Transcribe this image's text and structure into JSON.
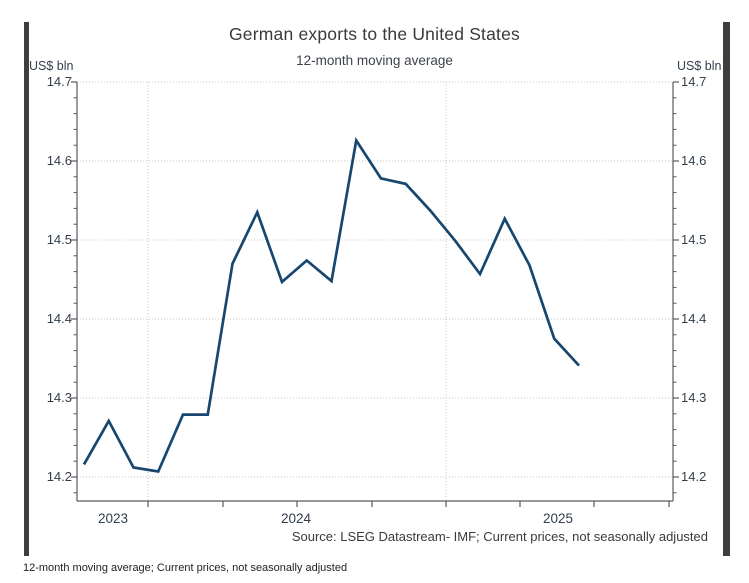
{
  "header": {
    "title": "German exports to the United States",
    "subtitle": "12-month moving average"
  },
  "axis_units": {
    "left": "US$ bln",
    "right": "US$ bln"
  },
  "y_axis": {
    "tick_labels": [
      "14.7",
      "14.6",
      "14.5",
      "14.4",
      "14.3",
      "14.2"
    ],
    "tick_values": [
      14.7,
      14.6,
      14.5,
      14.4,
      14.3,
      14.2
    ]
  },
  "x_axis": {
    "year_labels": [
      "2023",
      "2024",
      "2025"
    ]
  },
  "footer": {
    "source": "Source: LSEG Datastream- IMF; Current prices, not seasonally adjusted",
    "caption": "12-month moving average; Current prices, not seasonally adjusted"
  },
  "chart_data": {
    "type": "line",
    "title": "German exports to the United States",
    "subtitle": "12-month moving average",
    "ylabel": "US$ bln",
    "ylim": [
      14.2,
      14.7
    ],
    "y_tick_step": 0.1,
    "grid": "dotted",
    "legend": "none",
    "x": [
      "Oct 2023",
      "Nov 2023",
      "Dec 2023",
      "Jan 2024",
      "Feb 2024",
      "Mar 2024",
      "Apr 2024",
      "May 2024",
      "Jun 2024",
      "Jul 2024",
      "Aug 2024",
      "Sep 2024",
      "Oct 2024",
      "Nov 2024",
      "Dec 2024",
      "Jan 2025",
      "Feb 2025",
      "Mar 2025",
      "Apr 2025",
      "May 2025",
      "Jun 2025"
    ],
    "values": [
      14.216,
      14.271,
      14.212,
      14.207,
      14.279,
      14.279,
      14.47,
      14.535,
      14.447,
      14.474,
      14.448,
      14.626,
      14.578,
      14.571,
      14.537,
      14.499,
      14.457,
      14.527,
      14.468,
      14.375,
      14.341
    ],
    "year_gridlines": [
      "Jan 2024",
      "Jan 2025"
    ],
    "series_color": "#17466e",
    "gridline_color": "#c6c6c6",
    "axis_color": "#5a5a5c"
  }
}
